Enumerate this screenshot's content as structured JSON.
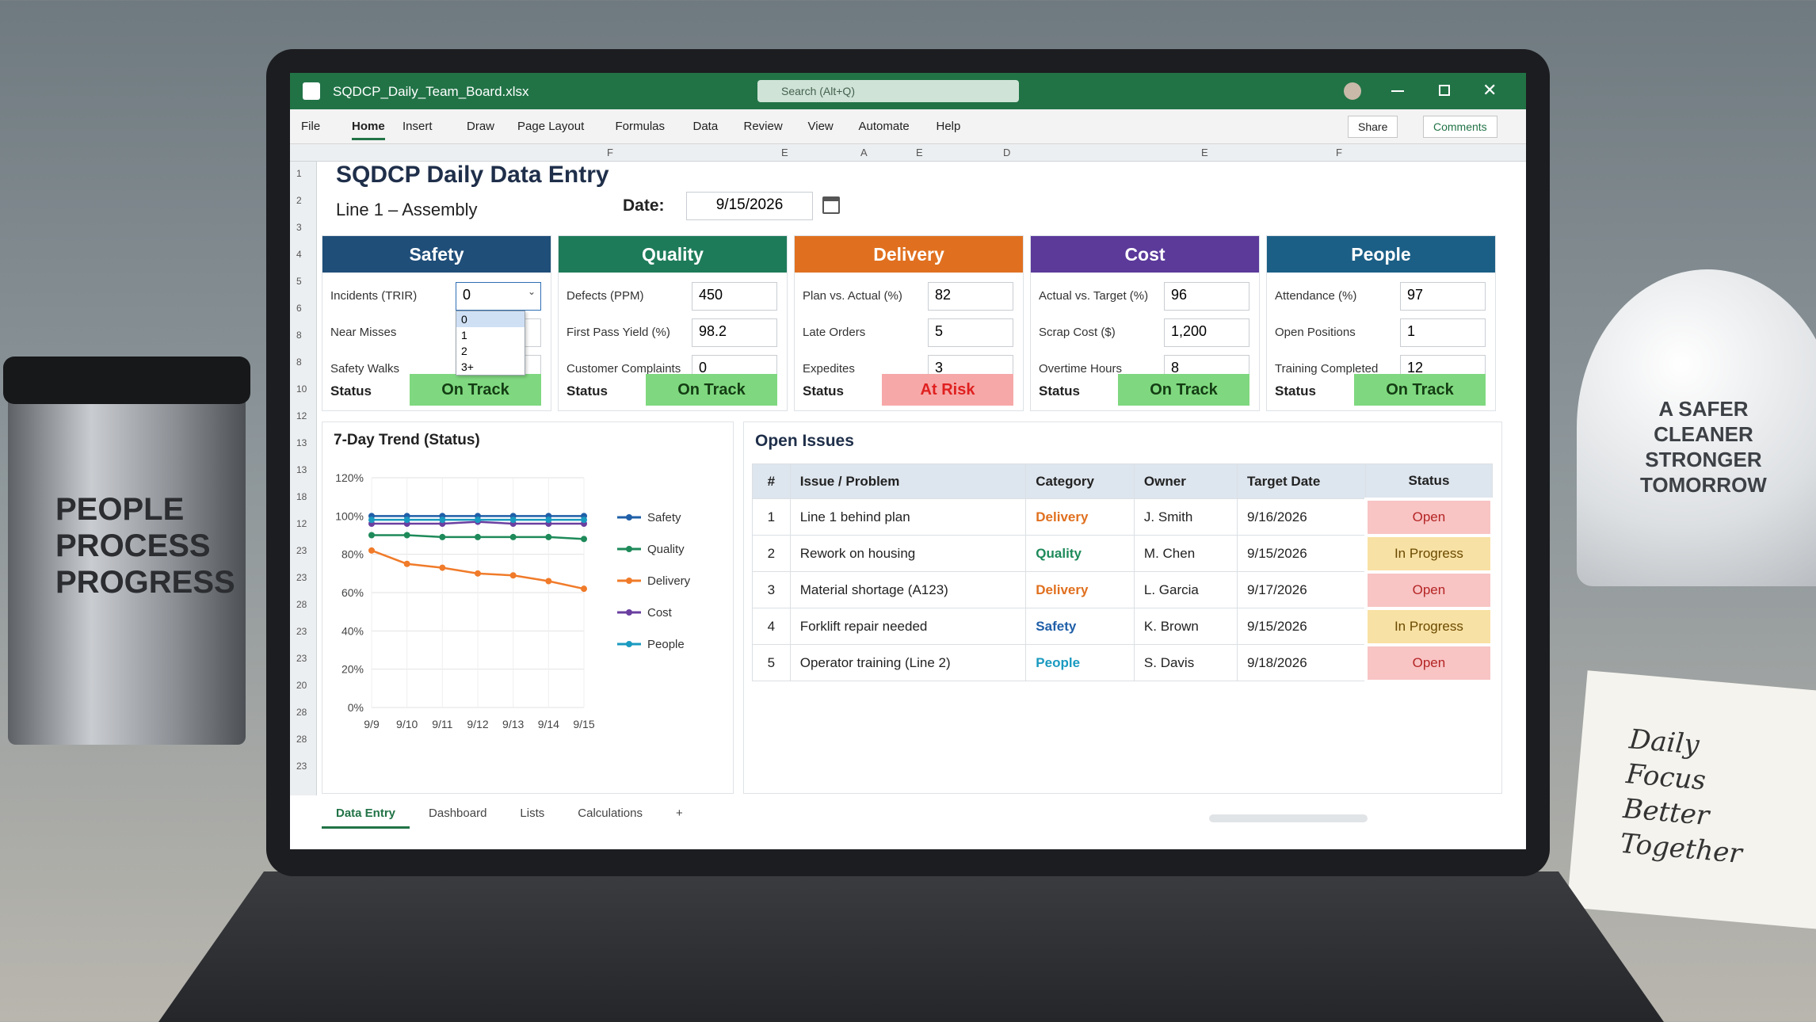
{
  "scene": {
    "mug_text": [
      "PEOPLE",
      "PROCESS",
      "PROGRESS"
    ],
    "helmet_text": [
      "A SAFER",
      "CLEANER",
      "STRONGER",
      "TOMORROW"
    ],
    "notebook_text": [
      "Daily",
      "Focus",
      "Better",
      "Together"
    ]
  },
  "window": {
    "filename": "SQDCP_Daily_Team_Board.xlsx",
    "search": "Search (Alt+Q)",
    "menu": [
      "File",
      "Home",
      "Insert",
      "Draw",
      "Page Layout",
      "Formulas",
      "Data",
      "Review",
      "View",
      "Automate",
      "Help"
    ],
    "share": "Share",
    "comments": "Comments"
  },
  "grid": {
    "columns": [
      "F",
      "E",
      "A",
      "E",
      "D",
      "E",
      "F"
    ],
    "rows": [
      "1",
      "2",
      "3",
      "4",
      "5",
      "6",
      "8",
      "8",
      "10",
      "12",
      "13",
      "13",
      "18",
      "12",
      "23",
      "23",
      "28",
      "23",
      "23",
      "20",
      "28",
      "28",
      "23"
    ]
  },
  "sheet": {
    "title": "SQDCP Daily Data Entry",
    "subtitle": "Line 1 – Assembly",
    "date_label": "Date:",
    "date": "9/15/2026"
  },
  "cards": [
    {
      "name": "Safety",
      "color": "#1f4e79",
      "fields": [
        {
          "label": "Incidents (TRIR)",
          "value": "0"
        },
        {
          "label": "Near Misses",
          "value": ""
        },
        {
          "label": "Safety Walks",
          "value": ""
        }
      ],
      "status_label": "Status",
      "status": "On Track",
      "status_bg": "#7fd87f",
      "status_fg": "#143d14"
    },
    {
      "name": "Quality",
      "color": "#1e7b5a",
      "fields": [
        {
          "label": "Defects (PPM)",
          "value": "450"
        },
        {
          "label": "First Pass Yield (%)",
          "value": "98.2"
        },
        {
          "label": "Customer Complaints",
          "value": "0"
        }
      ],
      "status_label": "Status",
      "status": "On Track",
      "status_bg": "#7fd87f",
      "status_fg": "#143d14"
    },
    {
      "name": "Delivery",
      "color": "#e0701f",
      "fields": [
        {
          "label": "Plan vs. Actual (%)",
          "value": "82"
        },
        {
          "label": "Late Orders",
          "value": "5"
        },
        {
          "label": "Expedites",
          "value": "3"
        }
      ],
      "status_label": "Status",
      "status": "At Risk",
      "status_bg": "#f6a8a8",
      "status_fg": "#e02020"
    },
    {
      "name": "Cost",
      "color": "#5b3a9a",
      "fields": [
        {
          "label": "Actual vs. Target (%)",
          "value": "96"
        },
        {
          "label": "Scrap Cost ($)",
          "value": "1,200"
        },
        {
          "label": "Overtime Hours",
          "value": "8"
        }
      ],
      "status_label": "Status",
      "status": "On Track",
      "status_bg": "#7fd87f",
      "status_fg": "#143d14"
    },
    {
      "name": "People",
      "color": "#1c5f86",
      "fields": [
        {
          "label": "Attendance (%)",
          "value": "97"
        },
        {
          "label": "Open Positions",
          "value": "1"
        },
        {
          "label": "Training Completed",
          "value": "12"
        }
      ],
      "status_label": "Status",
      "status": "On Track",
      "status_bg": "#7fd87f",
      "status_fg": "#143d14"
    }
  ],
  "dropdown": [
    "0",
    "1",
    "2",
    "3+"
  ],
  "chart_data": {
    "type": "line",
    "title": "7-Day Trend (Status)",
    "categories": [
      "9/9",
      "9/10",
      "9/11",
      "9/12",
      "9/13",
      "9/14",
      "9/15"
    ],
    "ylim": [
      0,
      120
    ],
    "yticks": [
      {
        "value": 0,
        "label": "0%"
      },
      {
        "value": 20,
        "label": "20%"
      },
      {
        "value": 40,
        "label": "40%"
      },
      {
        "value": 60,
        "label": "60%"
      },
      {
        "value": 80,
        "label": "80%"
      },
      {
        "value": 100,
        "label": "100%"
      },
      {
        "value": 120,
        "label": "120%"
      }
    ],
    "grid": true,
    "series": [
      {
        "name": "Safety",
        "color": "#1f5fa8",
        "values": [
          100,
          100,
          100,
          100,
          100,
          100,
          100
        ]
      },
      {
        "name": "Quality",
        "color": "#1e8a5a",
        "values": [
          90,
          90,
          89,
          89,
          89,
          89,
          88
        ]
      },
      {
        "name": "Delivery",
        "color": "#f07b2a",
        "values": [
          82,
          75,
          73,
          70,
          69,
          66,
          62
        ]
      },
      {
        "name": "Cost",
        "color": "#6a3fa0",
        "values": [
          96,
          96,
          96,
          97,
          96,
          96,
          96
        ]
      },
      {
        "name": "People",
        "color": "#1a9ac0",
        "values": [
          98,
          98,
          98,
          98,
          98,
          98,
          98
        ]
      }
    ]
  },
  "issues": {
    "title": "Open Issues",
    "headers": [
      "#",
      "Issue / Problem",
      "Category",
      "Owner",
      "Target Date",
      "Status"
    ],
    "rows": [
      [
        "1",
        "Line 1 behind plan",
        "Delivery",
        "J. Smith",
        "9/16/2026",
        "Open"
      ],
      [
        "2",
        "Rework on housing",
        "Quality",
        "M. Chen",
        "9/15/2026",
        "In Progress"
      ],
      [
        "3",
        "Material shortage (A123)",
        "Delivery",
        "L. Garcia",
        "9/17/2026",
        "Open"
      ],
      [
        "4",
        "Forklift repair needed",
        "Safety",
        "K. Brown",
        "9/15/2026",
        "In Progress"
      ],
      [
        "5",
        "Operator training (Line 2)",
        "People",
        "S. Davis",
        "9/18/2026",
        "Open"
      ]
    ],
    "category_colors": [
      "#e0701f",
      "#1e8a5a",
      "#e0701f",
      "#1f5fa8",
      "#1a9ac0"
    ],
    "status_bg": [
      "#f8c4c4",
      "#f8e1a4",
      "#f8c4c4",
      "#f8e1a4",
      "#f8c4c4"
    ],
    "status_fg": [
      "#b52424",
      "#6b4a00",
      "#b52424",
      "#6b4a00",
      "#b52424"
    ]
  },
  "sheet_tabs": [
    "Data Entry",
    "Dashboard",
    "Lists",
    "Calculations",
    "+"
  ]
}
